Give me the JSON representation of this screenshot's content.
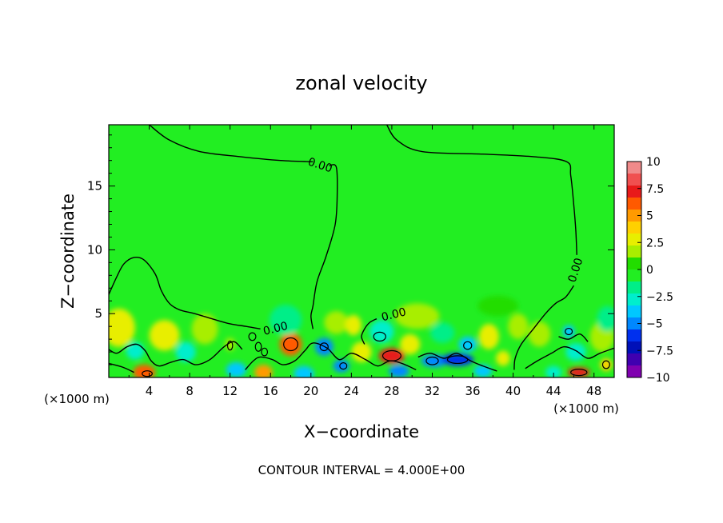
{
  "chart_data": {
    "type": "heatmap",
    "title": "zonal velocity",
    "xlabel": "X−coordinate",
    "ylabel": "Z−coordinate",
    "x_unit_left": "(×1000 m)",
    "x_unit_right": "(×1000 m)",
    "xlim": [
      0,
      50
    ],
    "ylim": [
      0,
      19.8
    ],
    "x_ticks": [
      4,
      8,
      12,
      16,
      20,
      24,
      28,
      32,
      36,
      40,
      44,
      48
    ],
    "y_ticks": [
      5,
      10,
      15
    ],
    "colorbar": {
      "ticks": [
        "10",
        "7.5",
        "5",
        "2.5",
        "0",
        "−2.5",
        "−5",
        "−7.5",
        "−10"
      ],
      "tick_values": [
        10,
        7.5,
        5,
        2.5,
        0,
        -2.5,
        -5,
        -7.5,
        -10
      ],
      "bands": [
        "#f08a8a",
        "#f05050",
        "#e81a1a",
        "#ff5a00",
        "#ff9a00",
        "#ffd000",
        "#e8ee00",
        "#a8ee00",
        "#22dd00",
        "#22ee22",
        "#00ee88",
        "#00eecc",
        "#00c8ff",
        "#0088ff",
        "#0030ee",
        "#0010b8",
        "#4000b0",
        "#8000b0"
      ]
    },
    "background_value": 0,
    "contour_label": "0.00",
    "contour_labels": [
      {
        "x": 16.5,
        "y": 3.8,
        "text": "0.00"
      },
      {
        "x": 28.2,
        "y": 4.9,
        "text": "0.00"
      },
      {
        "x": 20.9,
        "y": 16.6,
        "text": "0.00"
      },
      {
        "x": 46.2,
        "y": 8.4,
        "text": "0.00"
      }
    ],
    "contour_lines": [
      [
        [
          4,
          19.8
        ],
        [
          6,
          18.6
        ],
        [
          9,
          17.7
        ],
        [
          13,
          17.3
        ],
        [
          17,
          17.0
        ],
        [
          20.2,
          16.9
        ]
      ],
      [
        [
          21.8,
          16.6
        ],
        [
          22.5,
          16.5
        ],
        [
          22.6,
          14.5
        ],
        [
          22.4,
          12.0
        ],
        [
          21.5,
          9.5
        ],
        [
          20.6,
          7.5
        ],
        [
          20.2,
          5.6
        ],
        [
          20.0,
          4.8
        ],
        [
          20.2,
          3.8
        ]
      ],
      [
        [
          27.5,
          19.8
        ],
        [
          28.5,
          18.6
        ],
        [
          31,
          17.7
        ],
        [
          37,
          17.5
        ],
        [
          42,
          17.3
        ],
        [
          45.3,
          16.9
        ],
        [
          45.7,
          15.8
        ],
        [
          46.0,
          13.5
        ],
        [
          46.2,
          11.5
        ],
        [
          46.3,
          9.6
        ]
      ],
      [
        [
          46.0,
          7.2
        ],
        [
          45.2,
          6.3
        ],
        [
          44.2,
          5.8
        ],
        [
          43.2,
          5.0
        ],
        [
          42.0,
          3.8
        ],
        [
          40.8,
          2.6
        ],
        [
          40.2,
          1.5
        ],
        [
          40.1,
          0.6
        ]
      ],
      [
        [
          0,
          6.5
        ],
        [
          0.8,
          7.9
        ],
        [
          1.5,
          8.9
        ],
        [
          2.5,
          9.4
        ],
        [
          3.5,
          9.2
        ],
        [
          4.6,
          8.1
        ],
        [
          5.2,
          6.8
        ],
        [
          6.0,
          5.8
        ],
        [
          7.0,
          5.3
        ],
        [
          8.5,
          5.0
        ],
        [
          10.2,
          4.6
        ],
        [
          12.0,
          4.2
        ],
        [
          13.6,
          4.0
        ],
        [
          15.0,
          3.8
        ]
      ],
      [
        [
          26.5,
          4.6
        ],
        [
          25.8,
          4.3
        ],
        [
          25.3,
          3.8
        ],
        [
          25.0,
          3.2
        ],
        [
          25.3,
          2.6
        ]
      ],
      [
        [
          0,
          2.2
        ],
        [
          0.8,
          1.9
        ],
        [
          1.8,
          2.4
        ],
        [
          2.8,
          2.6
        ],
        [
          3.6,
          2.1
        ],
        [
          4.2,
          1.3
        ],
        [
          5.0,
          0.9
        ],
        [
          6.2,
          1.2
        ],
        [
          7.4,
          1.4
        ],
        [
          8.6,
          1.0
        ],
        [
          10.0,
          1.4
        ],
        [
          11.4,
          2.4
        ],
        [
          12.4,
          2.8
        ],
        [
          13.2,
          2.2
        ]
      ],
      [
        [
          0,
          1.1
        ],
        [
          1.4,
          0.8
        ],
        [
          2.5,
          0.4
        ]
      ],
      [
        [
          13.5,
          0.6
        ],
        [
          14.3,
          1.3
        ],
        [
          15.0,
          1.6
        ],
        [
          16.2,
          1.4
        ],
        [
          17.2,
          1.0
        ],
        [
          18.4,
          1.3
        ],
        [
          19.4,
          2.1
        ],
        [
          20.2,
          2.7
        ],
        [
          21.6,
          2.3
        ],
        [
          22.8,
          1.4
        ],
        [
          24.0,
          1.9
        ],
        [
          25.4,
          1.4
        ],
        [
          26.6,
          0.9
        ],
        [
          27.8,
          1.3
        ],
        [
          29.0,
          1.1
        ],
        [
          30.4,
          0.6
        ]
      ],
      [
        [
          30.6,
          1.6
        ],
        [
          31.8,
          1.9
        ],
        [
          33.2,
          1.5
        ],
        [
          34.4,
          1.9
        ],
        [
          35.8,
          1.3
        ],
        [
          37.0,
          0.9
        ],
        [
          38.4,
          0.5
        ]
      ],
      [
        [
          41.2,
          0.7
        ],
        [
          42.4,
          1.3
        ],
        [
          43.8,
          1.9
        ],
        [
          45.0,
          2.4
        ],
        [
          46.2,
          2.1
        ],
        [
          47.4,
          1.5
        ],
        [
          48.6,
          1.9
        ],
        [
          50,
          2.3
        ]
      ],
      [
        [
          44.5,
          3.2
        ],
        [
          45.5,
          3.0
        ],
        [
          46.6,
          3.4
        ],
        [
          47.4,
          2.8
        ]
      ]
    ],
    "contour_loops": [
      {
        "x": 18.0,
        "y": 2.6,
        "rx": 0.7,
        "ry": 0.5
      },
      {
        "x": 28.0,
        "y": 1.7,
        "rx": 0.9,
        "ry": 0.4
      },
      {
        "x": 12.0,
        "y": 2.5,
        "rx": 0.25,
        "ry": 0.35
      },
      {
        "x": 14.2,
        "y": 3.2,
        "rx": 0.35,
        "ry": 0.3
      },
      {
        "x": 14.8,
        "y": 2.4,
        "rx": 0.3,
        "ry": 0.35
      },
      {
        "x": 15.4,
        "y": 2.0,
        "rx": 0.3,
        "ry": 0.3
      },
      {
        "x": 21.3,
        "y": 2.4,
        "rx": 0.4,
        "ry": 0.3
      },
      {
        "x": 23.2,
        "y": 0.9,
        "rx": 0.35,
        "ry": 0.25
      },
      {
        "x": 34.5,
        "y": 1.4,
        "rx": 1.0,
        "ry": 0.3
      },
      {
        "x": 32.0,
        "y": 1.3,
        "rx": 0.6,
        "ry": 0.3
      },
      {
        "x": 35.5,
        "y": 2.5,
        "rx": 0.4,
        "ry": 0.3
      },
      {
        "x": 46.5,
        "y": 0.4,
        "rx": 0.8,
        "ry": 0.25
      },
      {
        "x": 49.2,
        "y": 1.0,
        "rx": 0.35,
        "ry": 0.3
      },
      {
        "x": 3.8,
        "y": 0.3,
        "rx": 0.5,
        "ry": 0.22
      },
      {
        "x": 26.8,
        "y": 3.2,
        "rx": 0.6,
        "ry": 0.35
      },
      {
        "x": 45.5,
        "y": 3.6,
        "rx": 0.35,
        "ry": 0.25
      }
    ],
    "anomalies": [
      {
        "x": 1.0,
        "y": 3.9,
        "rx": 1.6,
        "ry": 1.5,
        "v": 3.0
      },
      {
        "x": 3.5,
        "y": 0.4,
        "rx": 1.1,
        "ry": 0.6,
        "v": 6.0
      },
      {
        "x": 5.5,
        "y": 3.3,
        "rx": 1.5,
        "ry": 1.2,
        "v": 2.5
      },
      {
        "x": 9.5,
        "y": 3.8,
        "rx": 1.3,
        "ry": 1.2,
        "v": 1.8
      },
      {
        "x": 2.6,
        "y": 2.1,
        "rx": 0.9,
        "ry": 0.7,
        "v": -3.0
      },
      {
        "x": 7.6,
        "y": 2.0,
        "rx": 1.0,
        "ry": 0.8,
        "v": -2.8
      },
      {
        "x": 12.6,
        "y": 0.6,
        "rx": 1.0,
        "ry": 0.6,
        "v": -3.5
      },
      {
        "x": 12.0,
        "y": 2.6,
        "rx": 0.5,
        "ry": 0.5,
        "v": 2.2
      },
      {
        "x": 15.3,
        "y": 0.4,
        "rx": 0.9,
        "ry": 0.6,
        "v": 4.8
      },
      {
        "x": 18.0,
        "y": 2.6,
        "rx": 1.1,
        "ry": 0.9,
        "v": 6.5
      },
      {
        "x": 17.5,
        "y": 4.5,
        "rx": 1.6,
        "ry": 1.2,
        "v": -1.8
      },
      {
        "x": 19.3,
        "y": 0.3,
        "rx": 1.0,
        "ry": 0.6,
        "v": -4.0
      },
      {
        "x": 21.3,
        "y": 2.4,
        "rx": 0.9,
        "ry": 0.7,
        "v": -4.6
      },
      {
        "x": 23.0,
        "y": 0.9,
        "rx": 0.8,
        "ry": 0.5,
        "v": -5.0
      },
      {
        "x": 22.5,
        "y": 4.3,
        "rx": 1.2,
        "ry": 0.9,
        "v": 2.2
      },
      {
        "x": 25.0,
        "y": 2.0,
        "rx": 1.0,
        "ry": 0.8,
        "v": 2.6
      },
      {
        "x": 24.2,
        "y": 4.1,
        "rx": 0.8,
        "ry": 0.8,
        "v": 2.5
      },
      {
        "x": 28.0,
        "y": 1.7,
        "rx": 1.3,
        "ry": 0.6,
        "v": 6.8
      },
      {
        "x": 27.0,
        "y": 3.6,
        "rx": 1.2,
        "ry": 0.9,
        "v": -3.2
      },
      {
        "x": 28.7,
        "y": 0.5,
        "rx": 1.0,
        "ry": 0.5,
        "v": -5.2
      },
      {
        "x": 29.8,
        "y": 2.6,
        "rx": 1.0,
        "ry": 0.8,
        "v": 2.3
      },
      {
        "x": 30.5,
        "y": 4.8,
        "rx": 2.2,
        "ry": 1.0,
        "v": 1.4
      },
      {
        "x": 32.2,
        "y": 1.3,
        "rx": 1.3,
        "ry": 0.5,
        "v": -4.5
      },
      {
        "x": 34.5,
        "y": 1.4,
        "rx": 1.6,
        "ry": 0.5,
        "v": -6.2
      },
      {
        "x": 35.5,
        "y": 2.6,
        "rx": 0.9,
        "ry": 0.6,
        "v": -3.8
      },
      {
        "x": 33.0,
        "y": 3.5,
        "rx": 1.2,
        "ry": 0.8,
        "v": -1.8
      },
      {
        "x": 37.6,
        "y": 3.2,
        "rx": 1.0,
        "ry": 1.0,
        "v": 2.4
      },
      {
        "x": 37.0,
        "y": 0.5,
        "rx": 0.9,
        "ry": 0.5,
        "v": -3.4
      },
      {
        "x": 39.0,
        "y": 1.5,
        "rx": 0.7,
        "ry": 0.6,
        "v": 2.3
      },
      {
        "x": 40.5,
        "y": 4.0,
        "rx": 1.0,
        "ry": 1.0,
        "v": 2.0
      },
      {
        "x": 42.6,
        "y": 3.4,
        "rx": 1.1,
        "ry": 1.0,
        "v": 1.8
      },
      {
        "x": 44.0,
        "y": 0.4,
        "rx": 0.8,
        "ry": 0.5,
        "v": -3.2
      },
      {
        "x": 46.5,
        "y": 0.4,
        "rx": 1.1,
        "ry": 0.4,
        "v": 7.0
      },
      {
        "x": 46.2,
        "y": 2.0,
        "rx": 1.0,
        "ry": 0.7,
        "v": -2.8
      },
      {
        "x": 48.8,
        "y": 3.2,
        "rx": 1.2,
        "ry": 1.2,
        "v": 2.2
      },
      {
        "x": 49.3,
        "y": 4.6,
        "rx": 1.0,
        "ry": 1.0,
        "v": -2.2
      },
      {
        "x": 49.2,
        "y": 1.0,
        "rx": 0.6,
        "ry": 0.5,
        "v": 4.2
      },
      {
        "x": 38.5,
        "y": 5.6,
        "rx": 2.0,
        "ry": 0.8,
        "v": 1.0
      },
      {
        "x": 45.5,
        "y": 3.6,
        "rx": 0.6,
        "ry": 0.5,
        "v": -3.5
      }
    ]
  },
  "footer": {
    "contour_interval": "CONTOUR INTERVAL = 4.000E+00"
  }
}
